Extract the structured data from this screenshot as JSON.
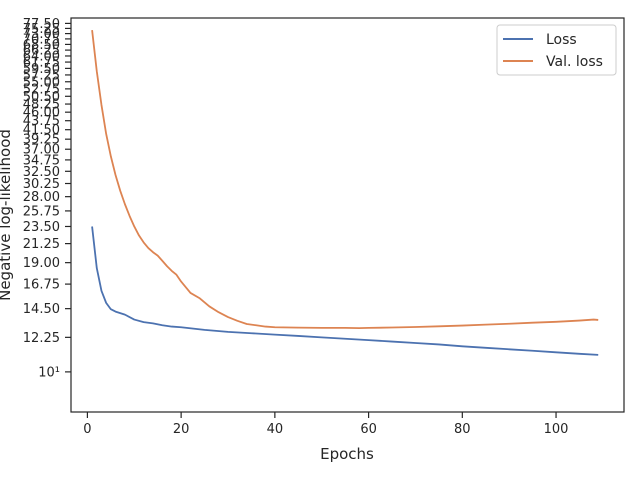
{
  "chart_data": {
    "type": "line",
    "title": "",
    "xlabel": "Epochs",
    "ylabel": "Negative log-likelihood",
    "x_scale": "linear",
    "y_scale": "log",
    "xlim": [
      -3.5,
      114.5
    ],
    "ylim": [
      7.9,
      80
    ],
    "grid": false,
    "legend_position": "top-right",
    "x_ticks": [
      0,
      20,
      40,
      60,
      80,
      100
    ],
    "x_tick_labels": [
      "0",
      "20",
      "40",
      "60",
      "80",
      "100"
    ],
    "y_ticks": [
      10,
      12.25,
      14.5,
      16.75,
      19.0,
      21.25,
      23.5,
      25.75,
      28.0,
      30.25,
      32.5,
      34.75,
      37.0,
      39.25,
      41.5,
      43.75,
      46.0,
      48.25,
      50.5,
      52.75,
      55.0,
      57.25,
      59.5,
      61.75,
      64.0,
      66.25,
      68.5,
      70.75,
      73.0,
      75.25,
      77.5
    ],
    "y_tick_labels": [
      "10¹",
      "12.25",
      "14.50",
      "16.75",
      "19.00",
      "21.25",
      "23.50",
      "25.75",
      "28.00",
      "30.25",
      "32.50",
      "34.75",
      "37.00",
      "39.25",
      "41.50",
      "43.75",
      "46.00",
      "48.25",
      "50.50",
      "52.75",
      "55.00",
      "57.25",
      "59.50",
      "61.75",
      "64.00",
      "66.25",
      "68.50",
      "70.75",
      "73.00",
      "75.25",
      "77.50"
    ],
    "series": [
      {
        "name": "Loss",
        "color": "#4c72b0",
        "x": [
          1,
          2,
          3,
          4,
          5,
          6,
          8,
          10,
          12,
          14,
          16,
          18,
          20,
          25,
          30,
          35,
          40,
          45,
          50,
          55,
          60,
          65,
          70,
          75,
          80,
          85,
          90,
          95,
          100,
          105,
          109
        ],
        "values": [
          23.5,
          18.4,
          16.1,
          15.0,
          14.45,
          14.25,
          14.0,
          13.6,
          13.4,
          13.3,
          13.15,
          13.05,
          13.0,
          12.8,
          12.65,
          12.55,
          12.45,
          12.35,
          12.25,
          12.15,
          12.05,
          11.95,
          11.85,
          11.75,
          11.62,
          11.52,
          11.42,
          11.32,
          11.22,
          11.12,
          11.05
        ]
      },
      {
        "name": "Val. loss",
        "color": "#dd8452",
        "x": [
          1,
          2,
          3,
          4,
          5,
          6,
          7,
          8,
          9,
          10,
          11,
          12,
          13,
          14,
          15,
          16,
          17,
          18,
          19,
          20,
          22,
          24,
          26,
          28,
          30,
          32,
          34,
          36,
          38,
          40,
          45,
          50,
          55,
          58,
          60,
          65,
          70,
          75,
          80,
          85,
          90,
          95,
          100,
          105,
          108,
          109
        ],
        "values": [
          74.5,
          58.5,
          48.0,
          40.5,
          35.5,
          31.8,
          29.0,
          26.8,
          25.0,
          23.5,
          22.3,
          21.4,
          20.7,
          20.2,
          19.8,
          19.2,
          18.6,
          18.1,
          17.7,
          17.0,
          15.9,
          15.4,
          14.7,
          14.2,
          13.8,
          13.5,
          13.25,
          13.15,
          13.05,
          13.0,
          12.97,
          12.95,
          12.95,
          12.93,
          12.95,
          12.98,
          13.02,
          13.07,
          13.13,
          13.2,
          13.27,
          13.35,
          13.42,
          13.52,
          13.6,
          13.57
        ]
      }
    ]
  }
}
